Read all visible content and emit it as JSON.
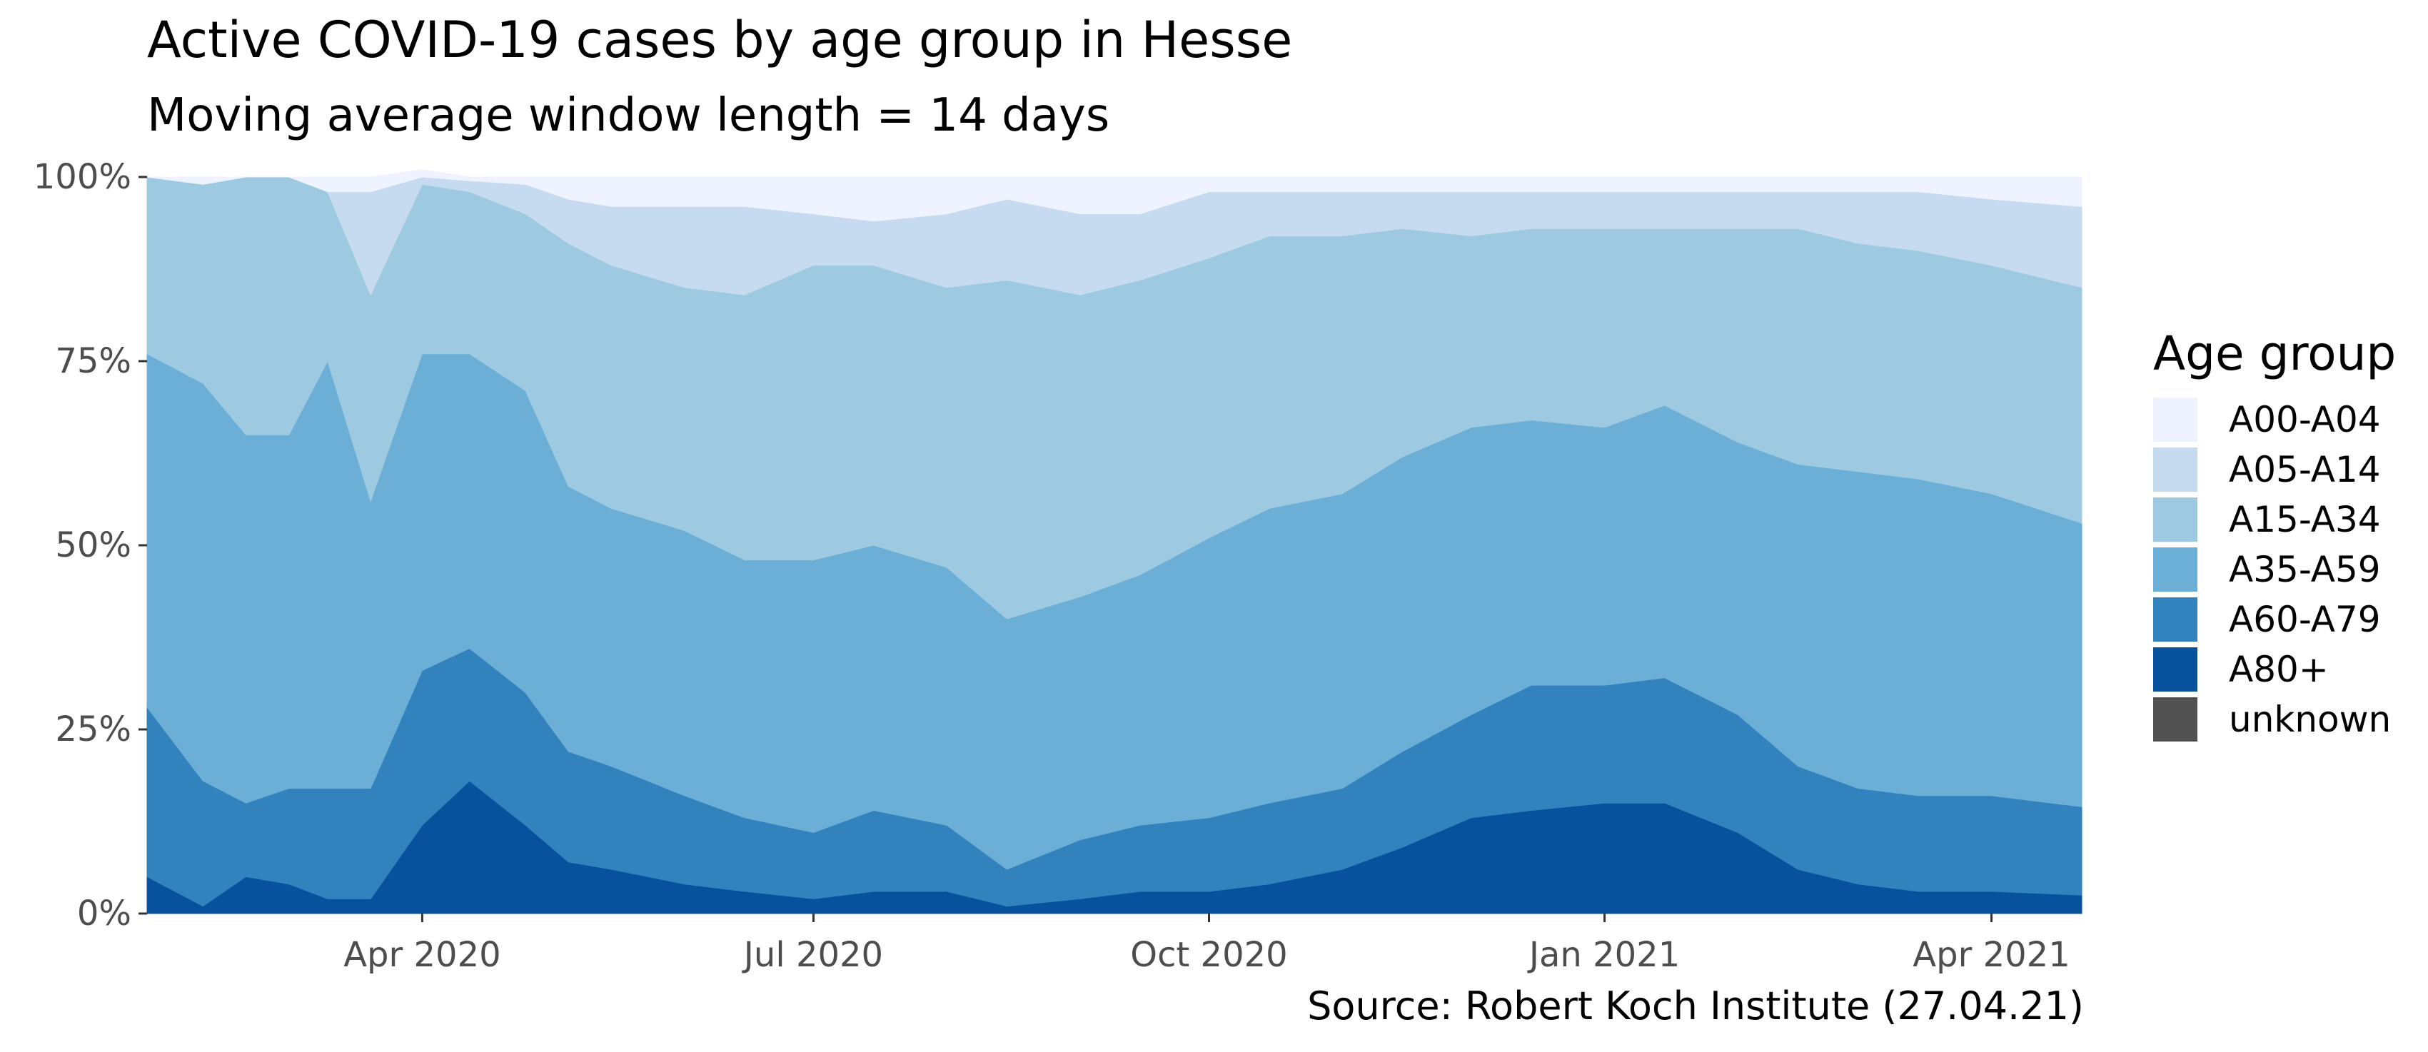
{
  "chart_data": {
    "type": "area",
    "stacked": true,
    "normalized": true,
    "title": "Active COVID-19 cases by age group in Hesse",
    "subtitle": "Moving average window length = 14 days",
    "caption": "Source: Robert Koch Institute (27.04.21)",
    "xlabel": "",
    "ylabel": "",
    "xlim": [
      "2020-01-28",
      "2021-04-22"
    ],
    "ylim": [
      0,
      1
    ],
    "y_ticks": [
      0,
      0.25,
      0.5,
      0.75,
      1
    ],
    "y_tick_labels": [
      "0%",
      "25%",
      "50%",
      "75%",
      "100%"
    ],
    "x_ticks": [
      "2020-04-01",
      "2020-07-01",
      "2020-10-01",
      "2021-01-01",
      "2021-04-01"
    ],
    "x_tick_labels": [
      "Apr 2020",
      "Jul 2020",
      "Oct 2020",
      "Jan 2021",
      "Apr 2021"
    ],
    "grid": false,
    "legend": {
      "title": "Age group",
      "position": "right"
    },
    "x": [
      "2020-01-28",
      "2020-02-10",
      "2020-02-20",
      "2020-03-01",
      "2020-03-10",
      "2020-03-20",
      "2020-04-01",
      "2020-04-12",
      "2020-04-25",
      "2020-05-05",
      "2020-05-15",
      "2020-06-01",
      "2020-06-15",
      "2020-07-01",
      "2020-07-15",
      "2020-08-01",
      "2020-08-15",
      "2020-09-01",
      "2020-09-15",
      "2020-10-01",
      "2020-10-15",
      "2020-11-01",
      "2020-11-15",
      "2020-12-01",
      "2020-12-15",
      "2021-01-01",
      "2021-01-15",
      "2021-02-01",
      "2021-02-15",
      "2021-03-01",
      "2021-03-15",
      "2021-04-01",
      "2021-04-22"
    ],
    "series": [
      {
        "name": "unknown",
        "color": "#525252",
        "values": [
          0,
          0,
          0,
          0,
          0,
          0,
          0,
          0,
          0,
          0,
          0,
          0,
          0,
          0,
          0,
          0,
          0,
          0,
          0,
          0,
          0,
          0,
          0,
          0,
          0,
          0,
          0,
          0,
          0,
          0,
          0,
          0,
          0
        ]
      },
      {
        "name": "A80+",
        "color": "#08519C",
        "values": [
          0.05,
          0.01,
          0.05,
          0.04,
          0.02,
          0.02,
          0.12,
          0.18,
          0.12,
          0.07,
          0.06,
          0.04,
          0.03,
          0.02,
          0.03,
          0.03,
          0.01,
          0.02,
          0.03,
          0.03,
          0.04,
          0.06,
          0.09,
          0.13,
          0.14,
          0.15,
          0.15,
          0.11,
          0.06,
          0.04,
          0.03,
          0.03,
          0.025
        ]
      },
      {
        "name": "A60-A79",
        "color": "#3182BD",
        "values": [
          0.23,
          0.17,
          0.1,
          0.13,
          0.15,
          0.15,
          0.21,
          0.18,
          0.18,
          0.15,
          0.14,
          0.12,
          0.1,
          0.09,
          0.11,
          0.09,
          0.05,
          0.08,
          0.09,
          0.1,
          0.11,
          0.11,
          0.13,
          0.14,
          0.17,
          0.16,
          0.17,
          0.16,
          0.14,
          0.13,
          0.13,
          0.13,
          0.12
        ]
      },
      {
        "name": "A35-A59",
        "color": "#6BAED6",
        "values": [
          0.48,
          0.54,
          0.5,
          0.48,
          0.58,
          0.39,
          0.43,
          0.4,
          0.41,
          0.36,
          0.35,
          0.36,
          0.35,
          0.37,
          0.36,
          0.35,
          0.34,
          0.33,
          0.34,
          0.38,
          0.4,
          0.4,
          0.4,
          0.39,
          0.36,
          0.35,
          0.37,
          0.37,
          0.41,
          0.43,
          0.43,
          0.41,
          0.385
        ]
      },
      {
        "name": "A15-A34",
        "color": "#9ECAE1",
        "values": [
          0.24,
          0.27,
          0.35,
          0.35,
          0.23,
          0.28,
          0.23,
          0.22,
          0.24,
          0.33,
          0.33,
          0.33,
          0.36,
          0.4,
          0.38,
          0.38,
          0.46,
          0.41,
          0.4,
          0.38,
          0.37,
          0.35,
          0.31,
          0.26,
          0.26,
          0.27,
          0.24,
          0.29,
          0.32,
          0.31,
          0.31,
          0.31,
          0.32
        ]
      },
      {
        "name": "A05-A14",
        "color": "#C6DBEF",
        "values": [
          0,
          0,
          0,
          0,
          0,
          0.14,
          0.01,
          0.015,
          0.04,
          0.06,
          0.08,
          0.11,
          0.12,
          0.07,
          0.06,
          0.1,
          0.11,
          0.11,
          0.09,
          0.09,
          0.06,
          0.06,
          0.05,
          0.06,
          0.05,
          0.05,
          0.05,
          0.05,
          0.05,
          0.07,
          0.08,
          0.09,
          0.11
        ]
      },
      {
        "name": "A00-A04",
        "color": "#EFF3FF",
        "values": [
          0,
          0.01,
          0,
          0,
          0.02,
          0.02,
          0.01,
          0.005,
          0.01,
          0.03,
          0.04,
          0.04,
          0.04,
          0.05,
          0.06,
          0.05,
          0.03,
          0.05,
          0.05,
          0.02,
          0.02,
          0.02,
          0.02,
          0.02,
          0.02,
          0.02,
          0.02,
          0.02,
          0.02,
          0.02,
          0.02,
          0.03,
          0.04
        ]
      }
    ]
  }
}
